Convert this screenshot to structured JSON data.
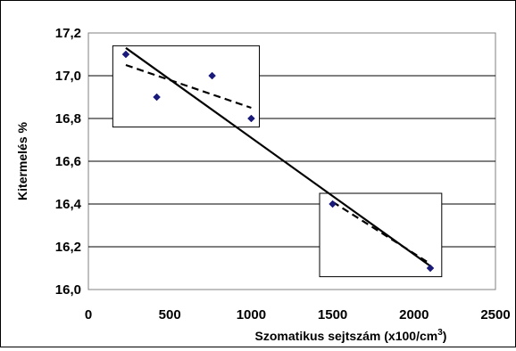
{
  "chart_data": {
    "type": "scatter",
    "ylabel": "Kitermelés %",
    "xlabel_main": "Szomatikus sejtszám (x100/cm",
    "xlabel_sup": "3",
    "xlabel_end": ")",
    "xlim": [
      0,
      2500
    ],
    "ylim": [
      16.0,
      17.2
    ],
    "x_ticks": [
      0,
      500,
      1000,
      1500,
      2000,
      2500
    ],
    "x_tick_labels": [
      "0",
      "500",
      "1000",
      "1500",
      "2000",
      "2500"
    ],
    "y_ticks": [
      16.0,
      16.2,
      16.4,
      16.6,
      16.8,
      17.0,
      17.2
    ],
    "y_tick_labels": [
      "16,0",
      "16,2",
      "16,4",
      "16,6",
      "16,8",
      "17,0",
      "17,2"
    ],
    "grid": "horizontal",
    "points": [
      {
        "x": 230,
        "y": 17.1
      },
      {
        "x": 420,
        "y": 16.9
      },
      {
        "x": 760,
        "y": 17.0
      },
      {
        "x": 1000,
        "y": 16.8
      },
      {
        "x": 1500,
        "y": 16.4
      },
      {
        "x": 2100,
        "y": 16.1
      }
    ],
    "point_color": "#1a1a7a",
    "trend_lines": [
      {
        "style": "solid",
        "from": {
          "x": 230,
          "y": 17.13
        },
        "to": {
          "x": 2100,
          "y": 16.11
        }
      },
      {
        "style": "dashed",
        "from": {
          "x": 230,
          "y": 17.05
        },
        "to": {
          "x": 1000,
          "y": 16.85
        }
      },
      {
        "style": "dashed",
        "from": {
          "x": 1500,
          "y": 16.41
        },
        "to": {
          "x": 2100,
          "y": 16.12
        }
      }
    ],
    "highlight_boxes": [
      {
        "x0": 150,
        "x1": 1050,
        "y0": 16.76,
        "y1": 17.14
      },
      {
        "x0": 1420,
        "x1": 2170,
        "y0": 16.06,
        "y1": 16.45
      }
    ]
  }
}
